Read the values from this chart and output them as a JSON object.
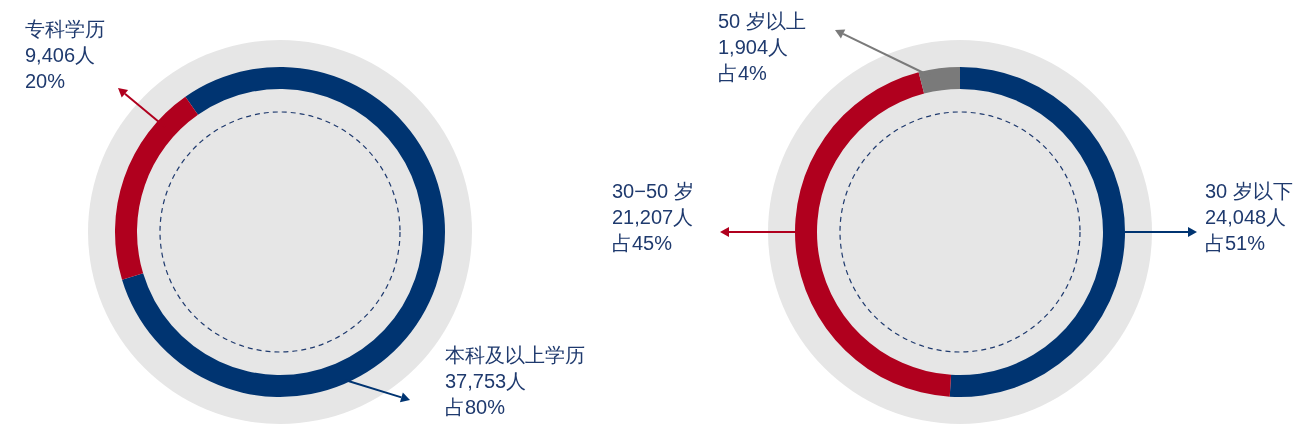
{
  "chart_data": [
    {
      "type": "donut",
      "categories": [
        "本科及以上学历",
        "专科学历"
      ],
      "values": [
        37753,
        9406
      ],
      "colors": [
        "#003471",
        "#b0001e"
      ],
      "value_labels": [
        "37,753人占80%",
        "9,406人20%"
      ]
    },
    {
      "type": "donut",
      "categories": [
        "30 岁以下",
        "30−50 岁",
        "50 岁以上"
      ],
      "values": [
        24048,
        21207,
        1904
      ],
      "colors": [
        "#003471",
        "#b0001e",
        "#7a7a7a"
      ],
      "value_labels": [
        "24,048人占51%",
        "21,207人占45%",
        "1,904人占4%"
      ]
    }
  ]
}
